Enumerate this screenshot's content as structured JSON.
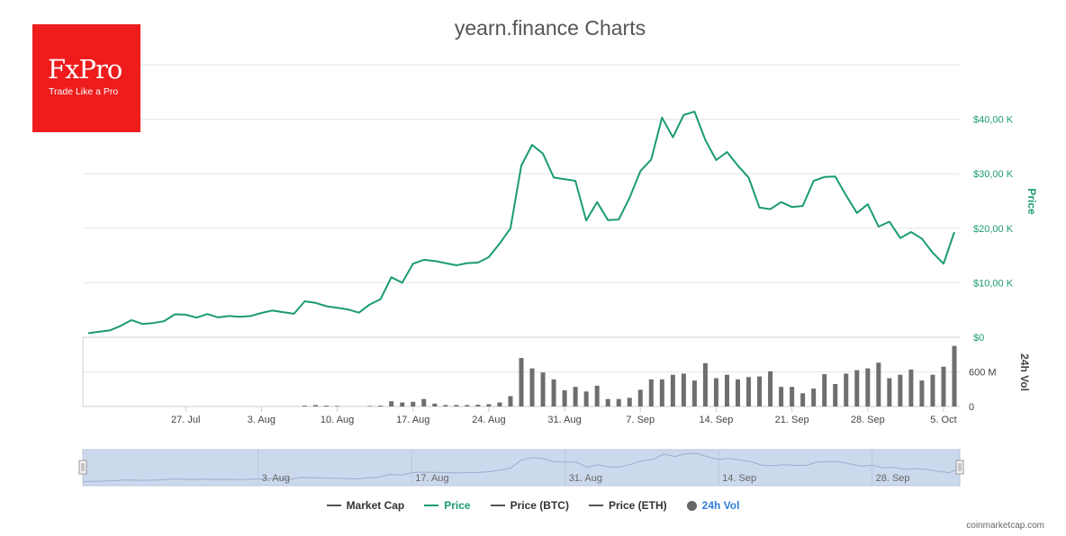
{
  "brand": {
    "name": "FxPro",
    "tagline": "Trade Like a Pro",
    "color": "#ee1c1c"
  },
  "title": "yearn.finance Charts",
  "credit": "coinmarketcap.com",
  "colors": {
    "price": "#1a9b73",
    "volume": "#6e6e6e",
    "navigator_fill": "#ccd8ec"
  },
  "legend": [
    {
      "label": "Market Cap",
      "marker": "line",
      "color": "#555555"
    },
    {
      "label": "Price",
      "marker": "line",
      "color": "#1a9b73"
    },
    {
      "label": "Price (BTC)",
      "marker": "line",
      "color": "#555555"
    },
    {
      "label": "Price (ETH)",
      "marker": "line",
      "color": "#555555"
    },
    {
      "label": "24h Vol",
      "marker": "dot",
      "color": "#666666"
    }
  ],
  "chart_data": {
    "type": "line",
    "title": "yearn.finance Charts",
    "x_tick_labels": [
      "27. Jul",
      "3. Aug",
      "10. Aug",
      "17. Aug",
      "24. Aug",
      "31. Aug",
      "7. Sep",
      "14. Sep",
      "21. Sep",
      "28. Sep",
      "5. Oct"
    ],
    "navigator_labels": [
      "3. Aug",
      "17. Aug",
      "31. Aug",
      "14. Sep",
      "28. Sep"
    ],
    "price_axis": {
      "label": "Price",
      "ticks": [
        "$0",
        "$10,00 K",
        "$20,00 K",
        "$30,00 K",
        "$40,00 K"
      ],
      "tick_values": [
        0,
        10000,
        20000,
        30000,
        40000
      ],
      "range": [
        0,
        50000
      ],
      "position": "right"
    },
    "volume_axis": {
      "label": "24h Vol",
      "ticks": [
        "0",
        "600 M"
      ],
      "tick_values": [
        0,
        600
      ],
      "range": [
        0,
        1200
      ],
      "unit": "M",
      "position": "right"
    },
    "grid": true,
    "legend_position": "bottom",
    "series": [
      {
        "name": "Price",
        "values": [
          750,
          1000,
          1250,
          2100,
          3150,
          2450,
          2600,
          2950,
          4200,
          4150,
          3600,
          4250,
          3650,
          3900,
          3750,
          3900,
          4450,
          4900,
          4600,
          4300,
          6600,
          6300,
          5700,
          5400,
          5100,
          4500,
          6000,
          7000,
          11000,
          10000,
          13500,
          14200,
          14000,
          13600,
          13200,
          13600,
          13700,
          14700,
          17200,
          20000,
          31500,
          35300,
          33700,
          29300,
          29000,
          28700,
          21400,
          24800,
          21500,
          21600,
          25600,
          30500,
          32600,
          40300,
          36700,
          40800,
          41400,
          36200,
          32500,
          34000,
          31500,
          29300,
          23800,
          23500,
          24800,
          23900,
          24100,
          28700,
          29400,
          29500,
          26000,
          22800,
          24400,
          20300,
          21200,
          18200,
          19300,
          18100,
          15500,
          13500,
          19300
        ]
      },
      {
        "name": "24h Vol",
        "unit": "M",
        "values": [
          0,
          0,
          0,
          0,
          0,
          0,
          0,
          0,
          0,
          0,
          0,
          0,
          0,
          0,
          0,
          0,
          0,
          0,
          0,
          0,
          15,
          25,
          15,
          10,
          0,
          0,
          10,
          15,
          90,
          70,
          80,
          130,
          50,
          25,
          25,
          25,
          30,
          40,
          70,
          180,
          840,
          660,
          590,
          470,
          280,
          340,
          260,
          360,
          130,
          130,
          150,
          290,
          470,
          470,
          550,
          570,
          450,
          750,
          490,
          550,
          470,
          510,
          520,
          610,
          340,
          340,
          230,
          310,
          560,
          390,
          570,
          630,
          660,
          760,
          490,
          550,
          640,
          450,
          550,
          690,
          1050
        ]
      }
    ]
  }
}
